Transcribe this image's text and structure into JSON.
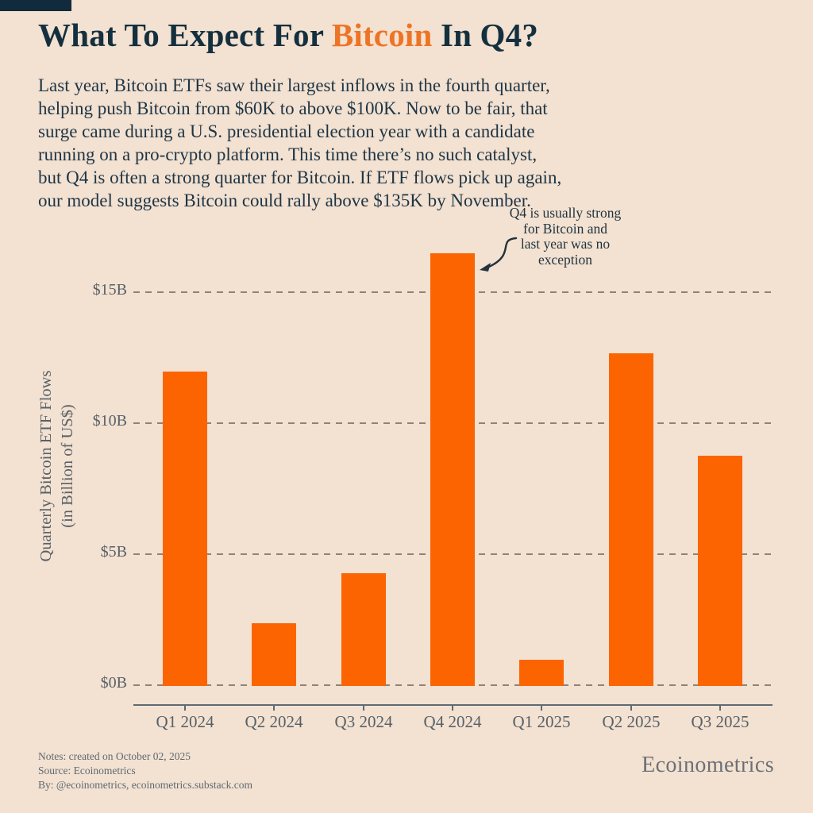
{
  "colors": {
    "background": "#F3E1D1",
    "accent_bar": "#112B3C",
    "title_navy": "#14303F",
    "title_orange": "#EE7425",
    "bar_orange": "#FB6400",
    "axis_gray": "#576168"
  },
  "header": {
    "title_prefix": "What To Expect For ",
    "title_highlight": "Bitcoin",
    "title_suffix": " In Q4?"
  },
  "intro": {
    "lines": [
      "Last year, Bitcoin ETFs saw their largest inflows in the fourth quarter,",
      "helping push Bitcoin from $60K to above $100K. Now to be fair, that",
      "surge came during a U.S. presidential election year with a candidate",
      "running on a pro-crypto platform. This time there’s no such catalyst,",
      "but Q4 is often a strong quarter for Bitcoin. If ETF flows pick up again,",
      "our model suggests Bitcoin could rally above $135K by November."
    ]
  },
  "chart_data": {
    "type": "bar",
    "categories": [
      "Q1 2024",
      "Q2 2024",
      "Q3 2024",
      "Q4 2024",
      "Q1 2025",
      "Q2 2025",
      "Q3 2025"
    ],
    "values": [
      12.0,
      2.4,
      4.3,
      16.5,
      1.0,
      12.7,
      8.8
    ],
    "unit": "billions of US$",
    "ylabel_lines": [
      "Quarterly Bitcoin ETF Flows",
      "(in Billion of US$)"
    ],
    "yticks": [
      {
        "label": "$0B",
        "value": 0
      },
      {
        "label": "$5B",
        "value": 5
      },
      {
        "label": "$10B",
        "value": 10
      },
      {
        "label": "$15B",
        "value": 15
      }
    ],
    "ylim": [
      0,
      17
    ],
    "grid": "dashed-horizontal",
    "legend": "none",
    "bar_color": "#FB6400",
    "annotation": {
      "lines": [
        "Q4 is usually strong",
        "for Bitcoin and",
        "last year was no",
        "exception"
      ],
      "target": "Q4 2024 bar top"
    }
  },
  "footer": {
    "notes_lines": [
      "Notes: created on October 02, 2025",
      "Source: Ecoinometrics",
      "By: @ecoinometrics, ecoinometrics.substack.com"
    ],
    "brand": "Ecoinometrics"
  }
}
